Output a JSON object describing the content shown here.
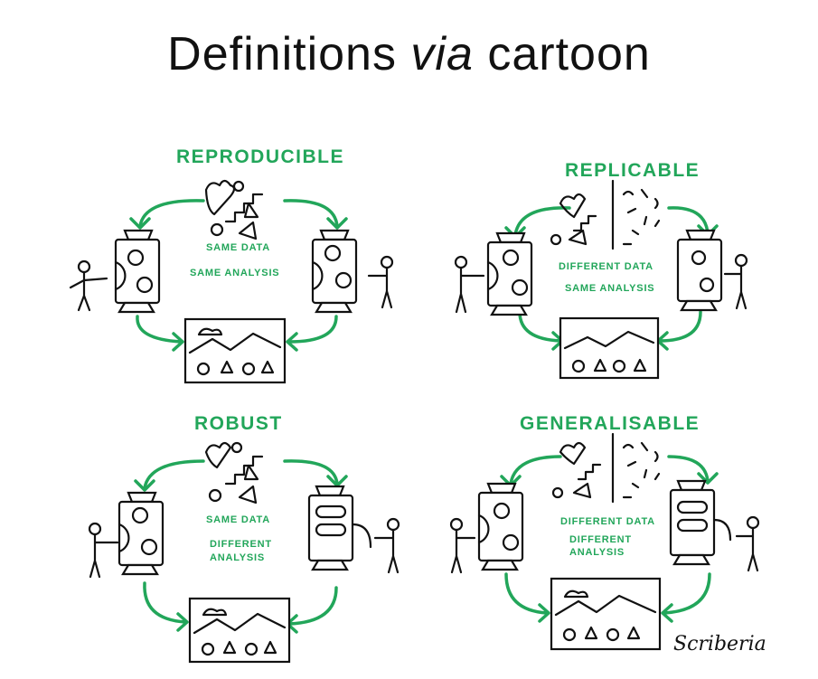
{
  "title": {
    "prefix": "Definitions",
    "italic": "via",
    "suffix": "cartoon"
  },
  "panels": [
    {
      "header": "REPRODUCIBLE",
      "line1": "SAME DATA",
      "line2": "SAME ANALYSIS",
      "line3": ""
    },
    {
      "header": "REPLICABLE",
      "line1": "DIFFERENT DATA",
      "line2": "SAME ANALYSIS",
      "line3": ""
    },
    {
      "header": "ROBUST",
      "line1": "SAME DATA",
      "line2": "DIFFERENT",
      "line3": "ANALYSIS"
    },
    {
      "header": "GENERALISABLE",
      "line1": "DIFFERENT DATA",
      "line2": "DIFFERENT",
      "line3": "ANALYSIS"
    }
  ],
  "signature": "Scriberia"
}
